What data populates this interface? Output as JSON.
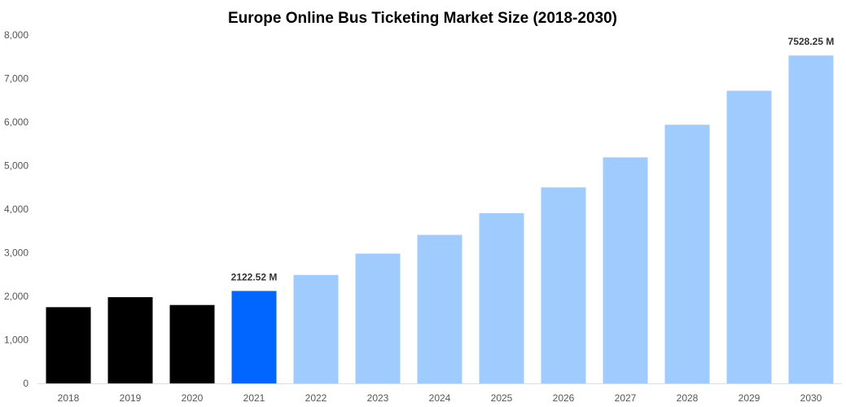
{
  "chart_data": {
    "type": "bar",
    "title": "Europe Online Bus Ticketing Market Size (2018-2030)",
    "xlabel": "",
    "ylabel": "",
    "categories": [
      "2018",
      "2019",
      "2020",
      "2021",
      "2022",
      "2023",
      "2024",
      "2025",
      "2026",
      "2027",
      "2028",
      "2029",
      "2030"
    ],
    "values": [
      1750,
      1980,
      1800,
      2122.52,
      2490,
      2980,
      3410,
      3910,
      4500,
      5190,
      5940,
      6720,
      7528.25
    ],
    "colors": [
      "#000000",
      "#000000",
      "#000000",
      "#0066ff",
      "#a0cbff",
      "#a0cbff",
      "#a0cbff",
      "#a0cbff",
      "#a0cbff",
      "#a0cbff",
      "#a0cbff",
      "#a0cbff",
      "#a0cbff"
    ],
    "ylim": [
      0,
      8000
    ],
    "yticks": [
      "0",
      "1,000",
      "2,000",
      "3,000",
      "4,000",
      "5,000",
      "6,000",
      "7,000",
      "8,000"
    ],
    "data_labels": [
      {
        "index": 3,
        "text": "2122.52 M"
      },
      {
        "index": 12,
        "text": "7528.25 M"
      }
    ],
    "grid": false,
    "legend": "none"
  }
}
